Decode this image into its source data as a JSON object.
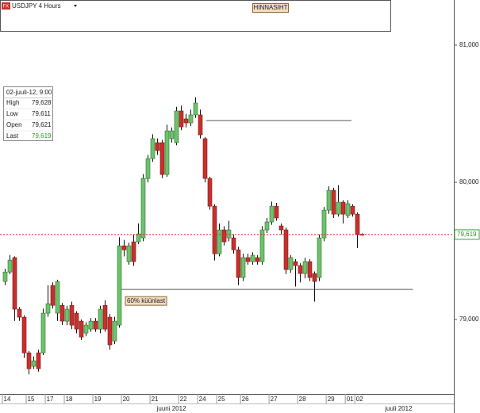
{
  "chart_data": {
    "type": "candlestick",
    "title": "USDJPY 4 Hours",
    "target_label": "HINNASIHT",
    "up_color": "#6cc36c",
    "down_color": "#c8302c",
    "open": [
      79.277,
      79.346,
      79.451,
      79.075,
      79.017,
      78.757,
      78.659,
      78.757,
      78.757,
      79.046,
      79.248,
      79.046,
      79.103,
      78.988,
      79.103,
      79.046,
      78.988,
      78.901,
      78.93,
      78.988,
      78.93,
      79.103,
      79.017,
      78.843,
      78.959,
      79.537,
      79.422,
      79.566,
      79.566,
      79.595,
      80.028,
      80.173,
      80.289,
      80.289,
      80.057,
      80.318,
      80.289,
      80.52,
      80.462,
      80.433,
      80.491,
      80.491,
      80.318,
      80.028,
      79.826,
      79.479,
      79.653,
      79.595,
      79.595,
      79.508,
      79.306,
      79.451,
      79.422,
      79.451,
      79.422,
      79.653,
      79.711,
      79.826,
      79.682,
      79.653,
      79.364,
      79.422,
      79.393,
      79.335,
      79.422,
      79.335,
      79.306,
      79.595,
      79.797,
      79.942,
      79.768,
      79.855,
      79.757,
      79.826,
      79.768,
      79.621
    ],
    "high": [
      79.37,
      79.47,
      79.46,
      79.09,
      79.03,
      78.77,
      78.73,
      78.78,
      79.08,
      79.25,
      79.27,
      79.29,
      79.12,
      79.1,
      79.13,
      79.06,
      79.0,
      78.98,
      79.01,
      79.01,
      79.1,
      79.14,
      79.04,
      79.02,
      79.6,
      79.58,
      79.56,
      79.62,
      79.7,
      80.06,
      80.2,
      80.35,
      80.32,
      80.31,
      80.42,
      80.4,
      80.55,
      80.56,
      80.5,
      80.53,
      80.62,
      80.53,
      80.33,
      80.04,
      79.84,
      79.7,
      79.68,
      79.72,
      79.62,
      79.53,
      79.48,
      79.48,
      79.49,
      79.47,
      79.68,
      79.74,
      79.86,
      79.85,
      79.7,
      79.67,
      79.47,
      79.44,
      79.41,
      79.45,
      79.44,
      79.35,
      79.62,
      79.82,
      79.97,
      79.96,
      79.98,
      79.87,
      79.87,
      79.84,
      79.78,
      79.628
    ],
    "low": [
      79.25,
      79.33,
      78.99,
      78.99,
      78.72,
      78.6,
      78.64,
      78.62,
      78.74,
      79.02,
      79.08,
      78.99,
      78.96,
      78.96,
      78.93,
      78.9,
      78.85,
      78.88,
      78.91,
      78.91,
      78.9,
      78.91,
      78.78,
      78.82,
      78.94,
      79.46,
      79.4,
      79.39,
      79.55,
      79.57,
      80.0,
      80.15,
      80.2,
      80.03,
      80.04,
      80.29,
      80.27,
      80.38,
      80.4,
      80.41,
      80.47,
      80.32,
      80.0,
      79.8,
      79.43,
      79.46,
      79.54,
      79.57,
      79.48,
      79.25,
      79.28,
      79.4,
      79.4,
      79.4,
      79.4,
      79.63,
      79.69,
      79.72,
      79.62,
      79.33,
      79.34,
      79.24,
      79.27,
      79.3,
      79.28,
      79.13,
      79.28,
      79.57,
      79.77,
      79.74,
      79.75,
      79.7,
      79.74,
      79.75,
      79.52,
      79.611
    ],
    "close": [
      79.346,
      79.433,
      79.075,
      79.017,
      78.757,
      78.641,
      78.699,
      78.641,
      79.046,
      79.115,
      79.103,
      79.277,
      78.988,
      79.075,
      78.959,
      78.93,
      78.872,
      78.959,
      78.988,
      78.93,
      79.075,
      78.93,
      78.815,
      78.988,
      79.537,
      79.508,
      79.537,
      79.422,
      79.624,
      80.028,
      80.173,
      80.318,
      80.231,
      80.057,
      80.375,
      80.375,
      80.52,
      80.404,
      80.433,
      80.491,
      80.578,
      80.346,
      80.028,
      79.826,
      79.479,
      79.653,
      79.566,
      79.653,
      79.508,
      79.306,
      79.451,
      79.422,
      79.468,
      79.422,
      79.653,
      79.711,
      79.826,
      79.74,
      79.653,
      79.364,
      79.451,
      79.393,
      79.335,
      79.422,
      79.306,
      79.277,
      79.595,
      79.797,
      79.942,
      79.768,
      79.855,
      79.768,
      79.844,
      79.768,
      79.618,
      79.619
    ],
    "xlim": [
      -1,
      94.3
    ],
    "xticks": [
      {
        "value": 0,
        "label": "14"
      },
      {
        "value": 5,
        "label": "15"
      },
      {
        "value": 9,
        "label": "17"
      },
      {
        "value": 13,
        "label": "18"
      },
      {
        "value": 19,
        "label": "19"
      },
      {
        "value": 25,
        "label": "20"
      },
      {
        "value": 31,
        "label": "21"
      },
      {
        "value": 37,
        "label": "22"
      },
      {
        "value": 41,
        "label": "24"
      },
      {
        "value": 45,
        "label": "25"
      },
      {
        "value": 50,
        "label": "26"
      },
      {
        "value": 56,
        "label": "27"
      },
      {
        "value": 62,
        "label": "28"
      },
      {
        "value": 68,
        "label": "29"
      },
      {
        "value": 72,
        "label": "01"
      },
      {
        "value": 74,
        "label": "02"
      }
    ],
    "month_labels": [
      {
        "value": 35,
        "label": "juuni 2012"
      },
      {
        "value": 82.7,
        "label": "juuli 2012"
      }
    ],
    "ylim": [
      78.457,
      81.329
    ],
    "yticks": [
      {
        "value": 79,
        "label": "79,000"
      },
      {
        "value": 80,
        "label": "80,000"
      },
      {
        "value": 81,
        "label": "81,000"
      }
    ],
    "last_price": {
      "value": 79.619,
      "label": "79,619"
    },
    "hlines": [
      {
        "value": 80.45,
        "from": 42.3,
        "to": 72.8
      },
      {
        "value": 79.219,
        "from": 24,
        "to": 85.7,
        "label": "60% küünlast"
      }
    ],
    "info": {
      "date": "02-juuli-12, 9:00",
      "rows": [
        [
          "High",
          "79,628"
        ],
        [
          "Low",
          "79,611"
        ],
        [
          "Open",
          "79,621"
        ],
        [
          "Last",
          "79,619"
        ]
      ]
    }
  }
}
